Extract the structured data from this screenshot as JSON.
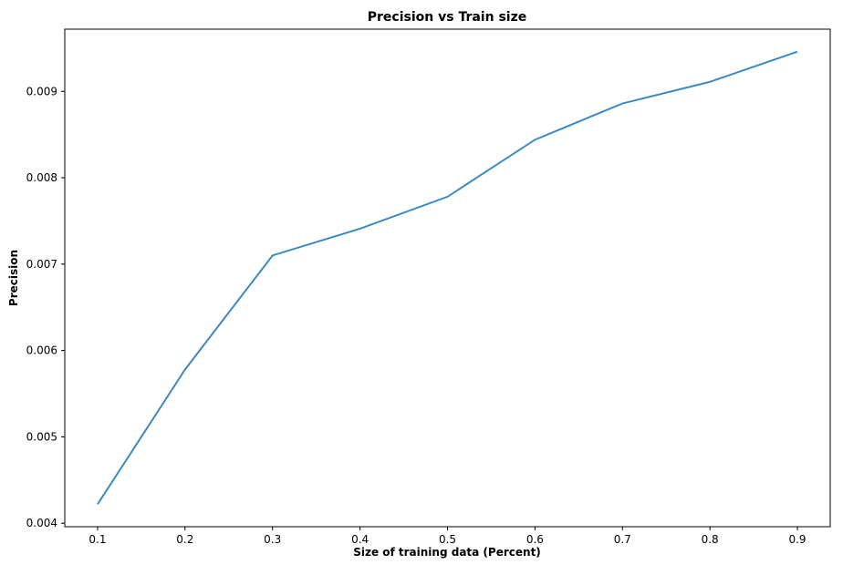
{
  "chart_data": {
    "type": "line",
    "title": "Precision vs Train size",
    "xlabel": "Size of training data (Percent)",
    "ylabel": "Precision",
    "x": [
      0.1,
      0.2,
      0.3,
      0.4,
      0.5,
      0.6,
      0.7,
      0.8,
      0.9
    ],
    "series": [
      {
        "values": [
          0.00422,
          0.00578,
          0.0071,
          0.00741,
          0.00778,
          0.00844,
          0.00886,
          0.00911,
          0.00946
        ]
      }
    ],
    "xlim": [
      0.0625,
      0.9375
    ],
    "ylim": [
      0.00396,
      0.00972
    ],
    "xticks": [
      0.1,
      0.2,
      0.3,
      0.4,
      0.5,
      0.6,
      0.7,
      0.8,
      0.9
    ],
    "xtick_labels": [
      "0.1",
      "0.2",
      "0.3",
      "0.4",
      "0.5",
      "0.6",
      "0.7",
      "0.8",
      "0.9"
    ],
    "yticks": [
      0.004,
      0.005,
      0.006,
      0.007,
      0.008,
      0.009
    ],
    "ytick_labels": [
      "0.004",
      "0.005",
      "0.006",
      "0.007",
      "0.008",
      "0.009"
    ],
    "grid": false,
    "colors": {
      "line": "#3c8ac2",
      "axes": "#000000"
    }
  }
}
